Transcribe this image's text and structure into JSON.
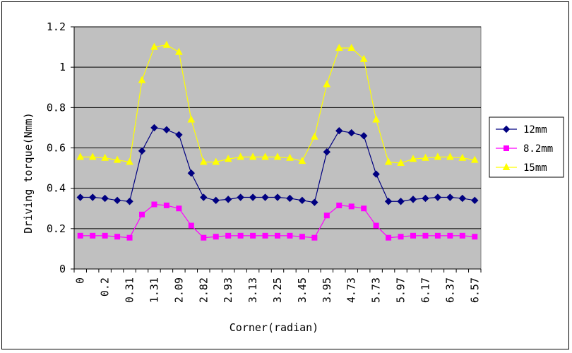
{
  "chart_data": {
    "type": "line",
    "xlabel": "Corner(radian)",
    "ylabel": "Driving torque(Nmm)",
    "ylim": [
      0,
      1.2
    ],
    "yticks": [
      "0",
      "0.2",
      "0.4",
      "0.6",
      "0.8",
      "1",
      "1.2"
    ],
    "ytick_values": [
      0,
      0.2,
      0.4,
      0.6,
      0.8,
      1.0,
      1.2
    ],
    "categories_count": 33,
    "tick_labels": [
      "0",
      "0.2",
      "0.31",
      "1.31",
      "2.09",
      "2.82",
      "2.93",
      "3.13",
      "3.25",
      "3.45",
      "3.95",
      "4.73",
      "5.73",
      "5.97",
      "6.17",
      "6.37",
      "6.57"
    ],
    "grid": "horizontal",
    "legend_position": "right",
    "plot_background": "#c0c0c0",
    "series": [
      {
        "name": "12mm",
        "color": "#000080",
        "marker": "diamond",
        "values": [
          0.355,
          0.355,
          0.35,
          0.34,
          0.335,
          0.585,
          0.7,
          0.69,
          0.665,
          0.475,
          0.355,
          0.34,
          0.345,
          0.355,
          0.355,
          0.355,
          0.355,
          0.35,
          0.34,
          0.33,
          0.58,
          0.685,
          0.675,
          0.66,
          0.47,
          0.335,
          0.335,
          0.345,
          0.35,
          0.355,
          0.355,
          0.35,
          0.34
        ]
      },
      {
        "name": "8.2mm",
        "color": "#ff00ff",
        "marker": "square",
        "values": [
          0.165,
          0.165,
          0.165,
          0.16,
          0.155,
          0.27,
          0.32,
          0.315,
          0.3,
          0.215,
          0.155,
          0.16,
          0.165,
          0.165,
          0.165,
          0.165,
          0.165,
          0.165,
          0.16,
          0.155,
          0.265,
          0.315,
          0.31,
          0.3,
          0.215,
          0.155,
          0.16,
          0.165,
          0.165,
          0.165,
          0.165,
          0.165,
          0.16
        ]
      },
      {
        "name": "15mm",
        "color": "#ffff00",
        "marker": "triangle",
        "values": [
          0.555,
          0.555,
          0.55,
          0.54,
          0.53,
          0.935,
          1.1,
          1.11,
          1.075,
          0.74,
          0.53,
          0.53,
          0.545,
          0.555,
          0.555,
          0.555,
          0.555,
          0.55,
          0.535,
          0.655,
          0.915,
          1.095,
          1.095,
          1.04,
          0.74,
          0.53,
          0.525,
          0.545,
          0.55,
          0.555,
          0.555,
          0.55,
          0.54
        ]
      }
    ]
  }
}
